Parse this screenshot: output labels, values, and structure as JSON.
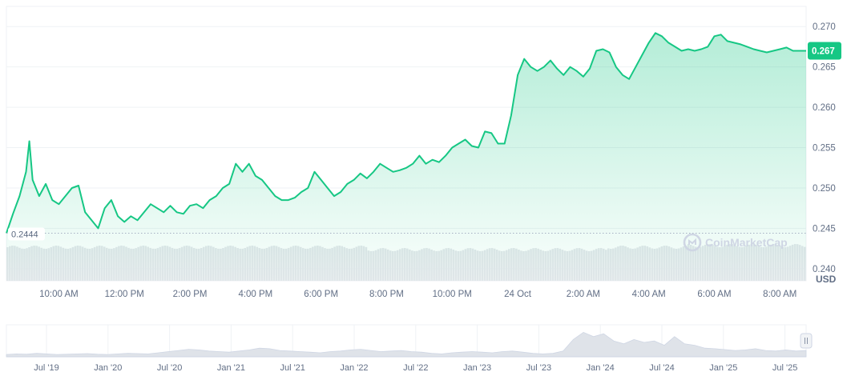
{
  "chart_data": {
    "type": "line",
    "unit_label": "USD",
    "watermark": "CoinMarketCap",
    "series_color": "#16c784",
    "current_price_label": "0.267",
    "open_price_label": "0.2444",
    "ylim": [
      0.2385,
      0.2725
    ],
    "y_ticks": [
      "0.270",
      "0.265",
      "0.260",
      "0.255",
      "0.250",
      "0.245",
      "0.240"
    ],
    "y_tick_values": [
      0.27,
      0.265,
      0.26,
      0.255,
      0.25,
      0.245,
      0.24
    ],
    "x_ticks": [
      "10:00 AM",
      "12:00 PM",
      "2:00 PM",
      "4:00 PM",
      "6:00 PM",
      "8:00 PM",
      "10:00 PM",
      "24 Oct",
      "2:00 AM",
      "4:00 AM",
      "6:00 AM",
      "8:00 AM"
    ],
    "x_tick_hours": [
      1.0,
      3.0,
      5.0,
      7.0,
      9.0,
      11.0,
      13.0,
      15.0,
      17.0,
      19.0,
      21.0,
      23.0
    ],
    "x_range_hours": [
      -0.6,
      23.8
    ],
    "x": [
      -0.6,
      -0.4,
      -0.2,
      0.0,
      0.1,
      0.2,
      0.3,
      0.4,
      0.6,
      0.8,
      1.0,
      1.2,
      1.4,
      1.6,
      1.8,
      2.0,
      2.2,
      2.4,
      2.6,
      2.8,
      3.0,
      3.2,
      3.4,
      3.6,
      3.8,
      4.0,
      4.2,
      4.4,
      4.6,
      4.8,
      5.0,
      5.2,
      5.4,
      5.6,
      5.8,
      6.0,
      6.2,
      6.4,
      6.6,
      6.8,
      7.0,
      7.2,
      7.4,
      7.6,
      7.8,
      8.0,
      8.2,
      8.4,
      8.6,
      8.8,
      9.0,
      9.2,
      9.4,
      9.6,
      9.8,
      10.0,
      10.2,
      10.4,
      10.6,
      10.8,
      11.0,
      11.2,
      11.4,
      11.6,
      11.8,
      12.0,
      12.2,
      12.4,
      12.6,
      12.8,
      13.0,
      13.2,
      13.4,
      13.6,
      13.8,
      14.0,
      14.2,
      14.4,
      14.6,
      14.8,
      15.0,
      15.2,
      15.4,
      15.6,
      15.8,
      16.0,
      16.2,
      16.4,
      16.6,
      16.8,
      17.0,
      17.2,
      17.4,
      17.6,
      17.8,
      18.0,
      18.2,
      18.4,
      18.6,
      18.8,
      19.0,
      19.2,
      19.4,
      19.6,
      19.8,
      20.0,
      20.2,
      20.4,
      20.6,
      20.8,
      21.0,
      21.2,
      21.4,
      21.6,
      21.8,
      22.0,
      22.2,
      22.4,
      22.6,
      22.8,
      23.0,
      23.2,
      23.4,
      23.6,
      23.8
    ],
    "y": [
      0.2444,
      0.2468,
      0.249,
      0.252,
      0.2558,
      0.251,
      0.25,
      0.249,
      0.2505,
      0.2485,
      0.248,
      0.249,
      0.25,
      0.2503,
      0.247,
      0.246,
      0.245,
      0.2475,
      0.2485,
      0.2465,
      0.2458,
      0.2465,
      0.246,
      0.247,
      0.248,
      0.2475,
      0.247,
      0.2478,
      0.247,
      0.2468,
      0.2478,
      0.248,
      0.2475,
      0.2485,
      0.249,
      0.25,
      0.2505,
      0.253,
      0.252,
      0.253,
      0.2515,
      0.251,
      0.25,
      0.249,
      0.2485,
      0.2485,
      0.2488,
      0.2495,
      0.25,
      0.252,
      0.251,
      0.25,
      0.249,
      0.2495,
      0.2505,
      0.251,
      0.2518,
      0.2512,
      0.252,
      0.253,
      0.2525,
      0.252,
      0.2522,
      0.2525,
      0.253,
      0.254,
      0.253,
      0.2535,
      0.2532,
      0.254,
      0.255,
      0.2555,
      0.256,
      0.2552,
      0.255,
      0.257,
      0.2568,
      0.2555,
      0.2555,
      0.259,
      0.264,
      0.266,
      0.265,
      0.2645,
      0.265,
      0.2658,
      0.2648,
      0.264,
      0.265,
      0.2645,
      0.2638,
      0.2648,
      0.267,
      0.2672,
      0.2668,
      0.265,
      0.264,
      0.2635,
      0.265,
      0.2665,
      0.268,
      0.2692,
      0.2688,
      0.268,
      0.2675,
      0.267,
      0.2672,
      0.267,
      0.2672,
      0.2675,
      0.2688,
      0.269,
      0.2682,
      0.268,
      0.2678,
      0.2675,
      0.2672,
      0.267,
      0.2668,
      0.267,
      0.2672,
      0.2674,
      0.267,
      0.267,
      0.267
    ],
    "volume_bars": 330,
    "navigator": {
      "x_ticks": [
        "Jul '19",
        "Jan '20",
        "Jul '20",
        "Jan '21",
        "Jul '21",
        "Jan '22",
        "Jul '22",
        "Jan '23",
        "Jul '23",
        "Jan '24",
        "Jul '24",
        "Jan '25",
        "Jul '25"
      ],
      "profile": [
        0.08,
        0.1,
        0.09,
        0.12,
        0.1,
        0.08,
        0.09,
        0.1,
        0.11,
        0.09,
        0.08,
        0.1,
        0.12,
        0.11,
        0.1,
        0.14,
        0.18,
        0.22,
        0.26,
        0.24,
        0.2,
        0.18,
        0.16,
        0.2,
        0.24,
        0.3,
        0.28,
        0.22,
        0.2,
        0.18,
        0.16,
        0.14,
        0.18,
        0.2,
        0.24,
        0.26,
        0.22,
        0.18,
        0.2,
        0.22,
        0.18,
        0.16,
        0.12,
        0.1,
        0.14,
        0.16,
        0.18,
        0.16,
        0.14,
        0.18,
        0.2,
        0.16,
        0.12,
        0.1,
        0.12,
        0.2,
        0.6,
        0.85,
        0.7,
        0.8,
        0.55,
        0.45,
        0.6,
        0.5,
        0.55,
        0.4,
        0.7,
        0.45,
        0.4,
        0.3,
        0.28,
        0.25,
        0.22,
        0.24,
        0.28,
        0.22,
        0.2,
        0.24,
        0.2,
        0.22
      ]
    }
  }
}
